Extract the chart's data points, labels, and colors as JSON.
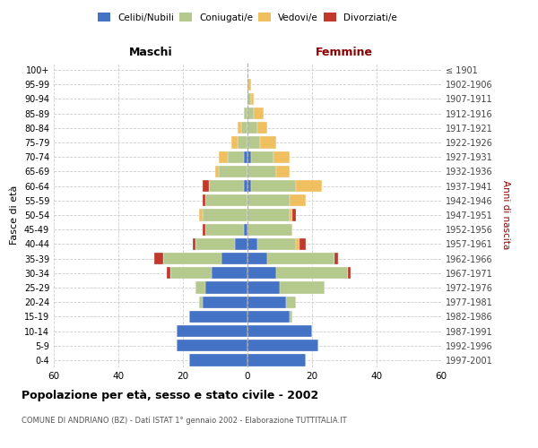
{
  "age_groups": [
    "0-4",
    "5-9",
    "10-14",
    "15-19",
    "20-24",
    "25-29",
    "30-34",
    "35-39",
    "40-44",
    "45-49",
    "50-54",
    "55-59",
    "60-64",
    "65-69",
    "70-74",
    "75-79",
    "80-84",
    "85-89",
    "90-94",
    "95-99",
    "100+"
  ],
  "birth_years": [
    "1997-2001",
    "1992-1996",
    "1987-1991",
    "1982-1986",
    "1977-1981",
    "1972-1976",
    "1967-1971",
    "1962-1966",
    "1957-1961",
    "1952-1956",
    "1947-1951",
    "1942-1946",
    "1937-1941",
    "1932-1936",
    "1927-1931",
    "1922-1926",
    "1917-1921",
    "1912-1916",
    "1907-1911",
    "1902-1906",
    "≤ 1901"
  ],
  "colors": {
    "celibi": "#4472c4",
    "coniugati": "#b5c98e",
    "vedovi": "#f0c060",
    "divorziati": "#c0392b"
  },
  "males": {
    "celibi": [
      18,
      22,
      22,
      18,
      14,
      13,
      11,
      8,
      4,
      1,
      0,
      0,
      1,
      0,
      1,
      0,
      0,
      0,
      0,
      0,
      0
    ],
    "coniugati": [
      0,
      0,
      0,
      0,
      1,
      3,
      13,
      18,
      12,
      12,
      14,
      13,
      11,
      9,
      5,
      3,
      2,
      1,
      0,
      0,
      0
    ],
    "vedovi": [
      0,
      0,
      0,
      0,
      0,
      0,
      0,
      0,
      0,
      0,
      1,
      0,
      0,
      1,
      3,
      2,
      1,
      0,
      0,
      0,
      0
    ],
    "divorziati": [
      0,
      0,
      0,
      0,
      0,
      0,
      1,
      3,
      1,
      1,
      0,
      1,
      2,
      0,
      0,
      0,
      0,
      0,
      0,
      0,
      0
    ]
  },
  "females": {
    "nubili": [
      18,
      22,
      20,
      13,
      12,
      10,
      9,
      6,
      3,
      0,
      0,
      0,
      1,
      0,
      1,
      0,
      0,
      0,
      0,
      0,
      0
    ],
    "coniugate": [
      0,
      0,
      0,
      1,
      3,
      14,
      22,
      21,
      12,
      14,
      13,
      13,
      14,
      9,
      7,
      4,
      3,
      2,
      1,
      0,
      0
    ],
    "vedove": [
      0,
      0,
      0,
      0,
      0,
      0,
      0,
      0,
      1,
      0,
      1,
      5,
      8,
      4,
      5,
      5,
      3,
      3,
      1,
      1,
      0
    ],
    "divorziate": [
      0,
      0,
      0,
      0,
      0,
      0,
      1,
      1,
      2,
      0,
      1,
      0,
      0,
      0,
      0,
      0,
      0,
      0,
      0,
      0,
      0
    ]
  },
  "xlim": 60,
  "title": "Popolazione per età, sesso e stato civile - 2002",
  "subtitle": "COMUNE DI ANDRIANO (BZ) - Dati ISTAT 1° gennaio 2002 - Elaborazione TUTTITALIA.IT",
  "ylabel_left": "Fasce di età",
  "ylabel_right": "Anni di nascita",
  "xlabel_left": "Maschi",
  "xlabel_right": "Femmine",
  "femmine_color": "#8b0000",
  "background_color": "#ffffff"
}
